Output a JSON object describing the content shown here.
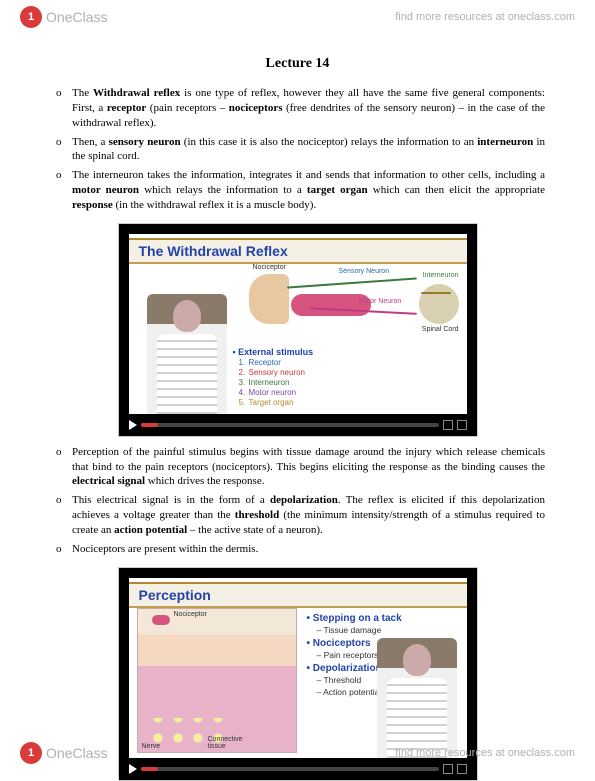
{
  "brand": {
    "badge": "1",
    "name": "OneClass",
    "tagline": "find more resources at oneclass.com"
  },
  "title": "Lecture 14",
  "bullets_top": [
    "The <b>Withdrawal reflex</b> is one type of reflex, however they all have the same five general components: First, a <b>receptor</b> (pain receptors – <b>nociceptors</b> (free dendrites of the sensory neuron) – in the case of the withdrawal reflex).",
    "Then, a <b>sensory neuron</b> (in this case it is also the nociceptor) relays the information to an <b>interneuron</b> in the spinal cord.",
    "The interneuron takes the information, integrates it and sends that information to other cells, including a <b>motor neuron</b> which relays the information to a <b>target organ</b> which can then elicit the appropriate <b>response</b> (in the withdrawal reflex it is a muscle body)."
  ],
  "bullets_mid": [
    "Perception of the painful stimulus begins with tissue damage around the injury which release chemicals that bind to the pain receptors (nociceptors). This begins eliciting the response as the binding causes the <b>electrical signal</b> which drives the response.",
    "This electrical signal is in the form of a <b>depolarization</b>. The reflex is elicited if this depolarization achieves a voltage greater than the <b>threshold</b> (the minimum intensity/strength of a stimulus required to create an <b>action potential</b> – the active state of a neuron).",
    "Nociceptors are present within the dermis."
  ],
  "slide1": {
    "title": "The Withdrawal Reflex",
    "labels": {
      "nociceptor": "Nociceptor",
      "sensory": "Sensory Neuron",
      "inter": "Interneuron",
      "motor": "Motor Neuron",
      "cord": "Spinal Cord"
    },
    "list_header": "External stimulus",
    "items": [
      {
        "n": "1.",
        "label": "Receptor",
        "color": "#2a6aa8"
      },
      {
        "n": "2.",
        "label": "Sensory neuron",
        "color": "#c03a3a"
      },
      {
        "n": "3.",
        "label": "Interneuron",
        "color": "#3a7a3a"
      },
      {
        "n": "4.",
        "label": "Motor neuron",
        "color": "#7a4aa0"
      },
      {
        "n": "5.",
        "label": "Target organ",
        "color": "#b28a2a"
      }
    ]
  },
  "slide2": {
    "title": "Perception",
    "labels": {
      "nociceptor": "Nociceptor",
      "nerve": "Nerve",
      "tissue": "Connective tissue"
    },
    "groups": [
      {
        "hd": "Stepping on a tack",
        "sub": "Tissue damage"
      },
      {
        "hd": "Nociceptors",
        "sub": "Pain receptors"
      },
      {
        "hd": "Depolarization",
        "sub": "Threshold",
        "sub2": "Action potential"
      }
    ]
  }
}
